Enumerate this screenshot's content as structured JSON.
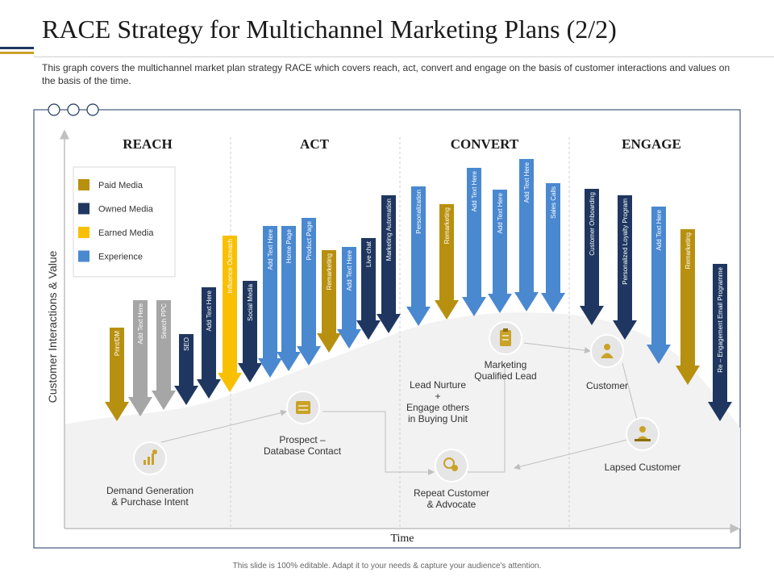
{
  "title": "RACE Strategy for Multichannel Marketing Plans (2/2)",
  "description": "This graph covers the multichannel market plan strategy RACE which covers reach, act, convert and engage on the basis of customer interactions and values  on the basis of the time.",
  "footer": "This slide is 100% editable. Adapt it to your needs & capture your audience's attention.",
  "axes": {
    "y": "Customer Interactions  & Value",
    "x": "Time"
  },
  "phases": [
    "REACH",
    "ACT",
    "CONVERT",
    "ENGAGE"
  ],
  "colors": {
    "paid": "#b8900f",
    "owned": "#1f3760",
    "earned": "#f8c000",
    "experience": "#4a88d0",
    "gray": "#a6a6a6"
  },
  "legend": [
    {
      "label": "Paid Media",
      "color": "#b8900f"
    },
    {
      "label": "Owned Media",
      "color": "#1f3760"
    },
    {
      "label": "Earned Media",
      "color": "#f8c000"
    },
    {
      "label": "Experience",
      "color": "#4a88d0"
    }
  ],
  "arrows": [
    {
      "label": "Print/DM",
      "color": "paid"
    },
    {
      "label": "Add Text Here",
      "color": "gray"
    },
    {
      "label": "Search PPC",
      "color": "gray"
    },
    {
      "label": "SEO",
      "color": "owned"
    },
    {
      "label": "Add Text Here",
      "color": "owned"
    },
    {
      "label": "Influence Outreach",
      "color": "earned"
    },
    {
      "label": "Social Media",
      "color": "owned"
    },
    {
      "label": "Add Text Here",
      "color": "experience"
    },
    {
      "label": "Home Page",
      "color": "experience"
    },
    {
      "label": "Product Page",
      "color": "experience"
    },
    {
      "label": "Remarketing",
      "color": "paid"
    },
    {
      "label": "Add Text Here",
      "color": "experience"
    },
    {
      "label": "Live chat",
      "color": "owned"
    },
    {
      "label": "Marketing Automation",
      "color": "owned"
    },
    {
      "label": "Personalization",
      "color": "experience"
    },
    {
      "label": "Remarketing",
      "color": "paid"
    },
    {
      "label": "Add Text Here",
      "color": "experience"
    },
    {
      "label": "Add Text Here",
      "color": "experience"
    },
    {
      "label": "Add Text Here",
      "color": "experience"
    },
    {
      "label": "Sales Calls",
      "color": "experience"
    },
    {
      "label": "Customer Onboarding",
      "color": "owned"
    },
    {
      "label": "Personalized Loyalty Program",
      "color": "owned"
    },
    {
      "label": "Add Text Here",
      "color": "experience"
    },
    {
      "label": "Remarketing",
      "color": "paid"
    },
    {
      "label": "Re – Engagement  Email Programme",
      "color": "owned"
    }
  ],
  "nodes": [
    {
      "id": "demand",
      "lines": [
        "Demand Generation",
        "& Purchase Intent"
      ],
      "icon": "growth-chart-icon"
    },
    {
      "id": "prospect",
      "lines": [
        "Prospect –",
        "Database Contact"
      ],
      "icon": "database-icon"
    },
    {
      "id": "nurture",
      "lines": [
        "Lead Nurture",
        "+",
        "Engage others",
        "in Buying Unit"
      ],
      "icon": ""
    },
    {
      "id": "mql",
      "lines": [
        "Marketing",
        "Qualified Lead"
      ],
      "icon": "clipboard-icon"
    },
    {
      "id": "customer",
      "lines": [
        "Customer"
      ],
      "icon": "customer-icon"
    },
    {
      "id": "repeat",
      "lines": [
        "Repeat Customer",
        "& Advocate"
      ],
      "icon": "advocate-icon"
    },
    {
      "id": "lapsed",
      "lines": [
        "Lapsed Customer"
      ],
      "icon": "lapsed-customer-icon"
    }
  ]
}
